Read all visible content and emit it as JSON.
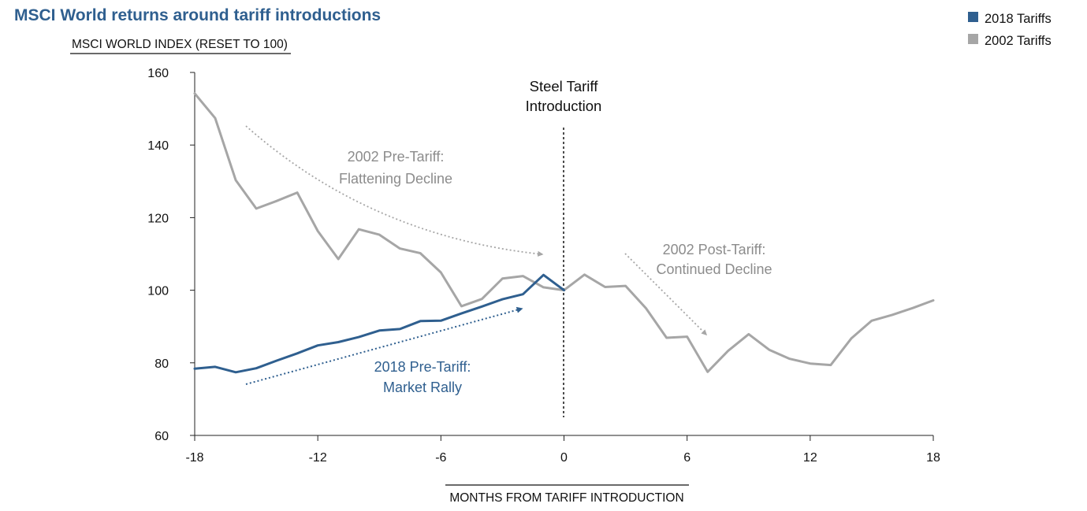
{
  "chart_data": {
    "type": "line",
    "title": "MSCI World returns around tariff introductions",
    "ylabel": "MSCI WORLD INDEX (RESET TO 100)",
    "xlabel": "MONTHS FROM TARIFF INTRODUCTION",
    "xlim": [
      -18,
      18
    ],
    "ylim": [
      60,
      160
    ],
    "xticks": [
      "-18",
      "-12",
      "-6",
      "0",
      "6",
      "12",
      "18"
    ],
    "yticks": [
      "60",
      "80",
      "100",
      "120",
      "140",
      "160"
    ],
    "legend": [
      "2018 Tariffs",
      "2002 Tariffs"
    ],
    "series": [
      {
        "name": "2002 Tariffs",
        "color": "#a6a6a6",
        "x": [
          -18,
          -17,
          -16,
          -15,
          -14,
          -13,
          -12,
          -11,
          -10,
          -9,
          -8,
          -7,
          -6,
          -5,
          -4,
          -3,
          -2,
          -1,
          0,
          1,
          2,
          3,
          4,
          5,
          6,
          7,
          8,
          9,
          10,
          11,
          12,
          13,
          14,
          15,
          16,
          17,
          18
        ],
        "values": [
          154.2,
          147.4,
          130.3,
          122.5,
          124.6,
          126.9,
          116.3,
          108.6,
          116.8,
          115.3,
          111.5,
          110.2,
          104.9,
          95.6,
          97.6,
          103.2,
          103.9,
          100.8,
          100,
          104.3,
          100.9,
          101.2,
          95.0,
          86.9,
          87.2,
          77.5,
          83.3,
          87.9,
          83.6,
          81.1,
          79.8,
          79.4,
          86.7,
          91.6,
          93.2,
          95.1,
          97.2
        ]
      },
      {
        "name": "2018 Tariffs",
        "color": "#2f5f8f",
        "x": [
          -18,
          -17,
          -16,
          -15,
          -14,
          -13,
          -12,
          -11,
          -10,
          -9,
          -8,
          -7,
          -6,
          -5,
          -4,
          -3,
          -2,
          -1,
          0
        ],
        "values": [
          78.4,
          78.9,
          77.4,
          78.5,
          80.6,
          82.6,
          84.8,
          85.7,
          87.1,
          88.9,
          89.3,
          91.5,
          91.6,
          93.6,
          95.5,
          97.5,
          98.9,
          104.2,
          100
        ]
      }
    ],
    "annotations": {
      "steel_tariff": [
        "Steel Tariff",
        "Introduction"
      ],
      "pre_2002": [
        "2002 Pre-Tariff:",
        "Flattening Decline"
      ],
      "post_2002": [
        "2002 Post-Tariff:",
        "Continued Decline"
      ],
      "pre_2018": [
        "2018 Pre-Tariff:",
        "Market Rally"
      ]
    }
  }
}
